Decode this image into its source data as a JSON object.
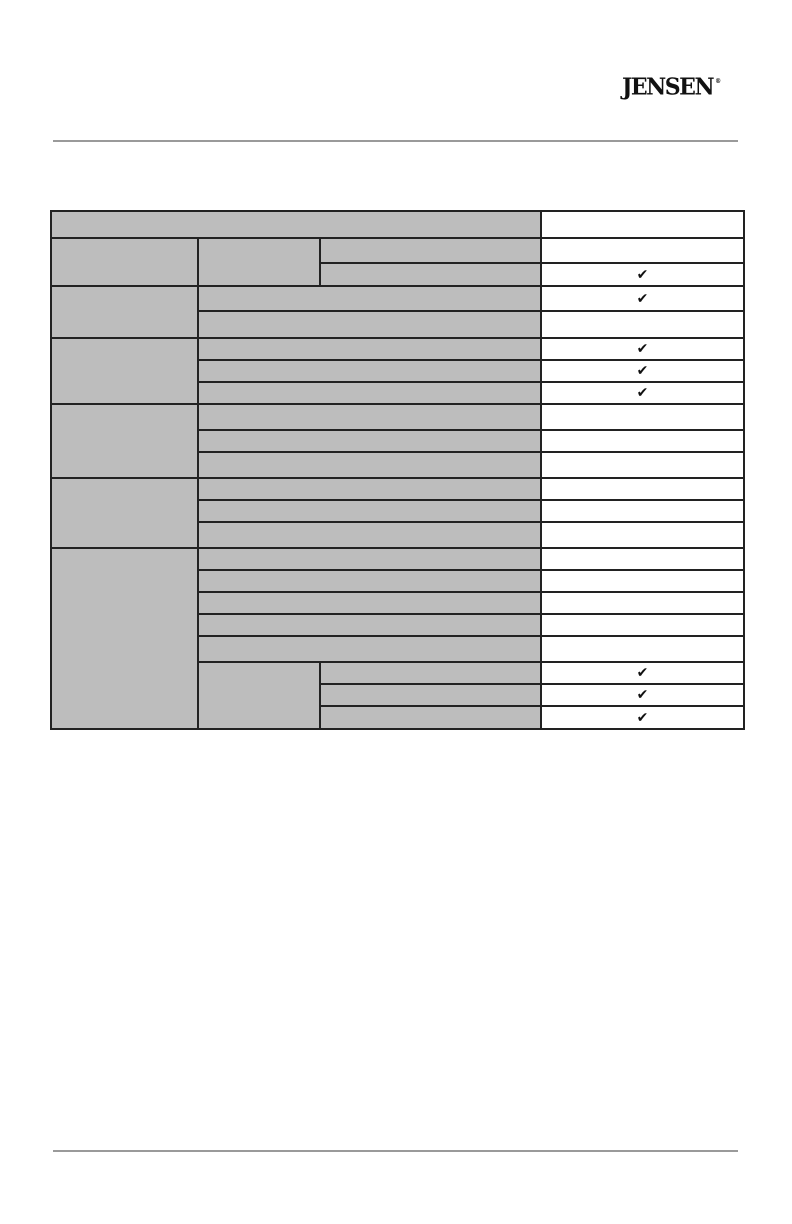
{
  "header": {
    "logo_text": "JENSEN",
    "logo_mark": "®"
  },
  "table": {
    "header_value": "",
    "rows": [
      {
        "value": ""
      },
      {
        "value": "check"
      },
      {
        "value": "check"
      },
      {
        "value": ""
      },
      {
        "value": "check"
      },
      {
        "value": "check"
      },
      {
        "value": "check"
      },
      {
        "value": ""
      },
      {
        "value": ""
      },
      {
        "value": ""
      },
      {
        "value": ""
      },
      {
        "value": ""
      },
      {
        "value": ""
      },
      {
        "value": ""
      },
      {
        "value": ""
      },
      {
        "value": ""
      },
      {
        "value": ""
      },
      {
        "value": ""
      },
      {
        "value": "check"
      },
      {
        "value": "check"
      },
      {
        "value": "check"
      }
    ],
    "check_icon": "check-mark-icon"
  }
}
